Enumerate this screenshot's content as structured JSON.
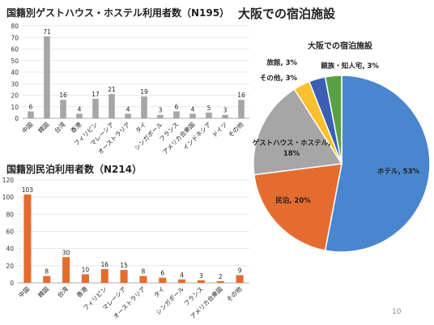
{
  "heading": "大阪での宿泊施設",
  "page_number": "10",
  "chart_data": [
    {
      "type": "bar",
      "title": "国籍別ゲストハウス・ホステル利用者数（N195）",
      "categories": [
        "中国",
        "韓国",
        "台湾",
        "香港",
        "フィリピン",
        "マレーシア",
        "オーストラリア",
        "タイ",
        "シンガポール",
        "フランス",
        "アメリカ合衆国",
        "インドネシア",
        "ドイツ",
        "その他"
      ],
      "values": [
        6,
        71,
        16,
        4,
        17,
        21,
        4,
        19,
        3,
        6,
        4,
        5,
        3,
        16
      ],
      "ylim": [
        0,
        80
      ],
      "yticks": [
        0,
        10,
        20,
        30,
        40,
        50,
        60,
        70,
        80
      ],
      "color": "#a6a6a6",
      "grid": true
    },
    {
      "type": "bar",
      "title": "国籍別民泊利用者数（N214）",
      "categories": [
        "中国",
        "韓国",
        "台湾",
        "香港",
        "フィリピン",
        "マレーシア",
        "オーストラリア",
        "タイ",
        "シンガポール",
        "フランス",
        "アメリカ合衆国",
        "その他"
      ],
      "values": [
        103,
        8,
        30,
        10,
        16,
        15,
        8,
        6,
        4,
        3,
        2,
        9
      ],
      "ylim": [
        0,
        120
      ],
      "yticks": [
        0,
        20,
        40,
        60,
        80,
        100,
        120
      ],
      "color": "#e46c2e",
      "grid": true
    },
    {
      "type": "pie",
      "title": "大阪での宿泊施設",
      "labels": [
        "ホテル",
        "民泊",
        "ゲストハウス・ホステル",
        "その他",
        "旅館",
        "親族・知人宅"
      ],
      "values": [
        53,
        20,
        18,
        3,
        3,
        3
      ],
      "data_labels": [
        "ホテル, 53%",
        "民泊, 20%",
        "ゲストハウス・ホステル, 18%",
        "その他, 3%",
        "旅館, 3%",
        "親族・知人宅, 3%"
      ],
      "colors": [
        "#4a86cf",
        "#e46c2e",
        "#a6a6a6",
        "#fbc02d",
        "#3a5fb5",
        "#5aa044"
      ]
    }
  ]
}
